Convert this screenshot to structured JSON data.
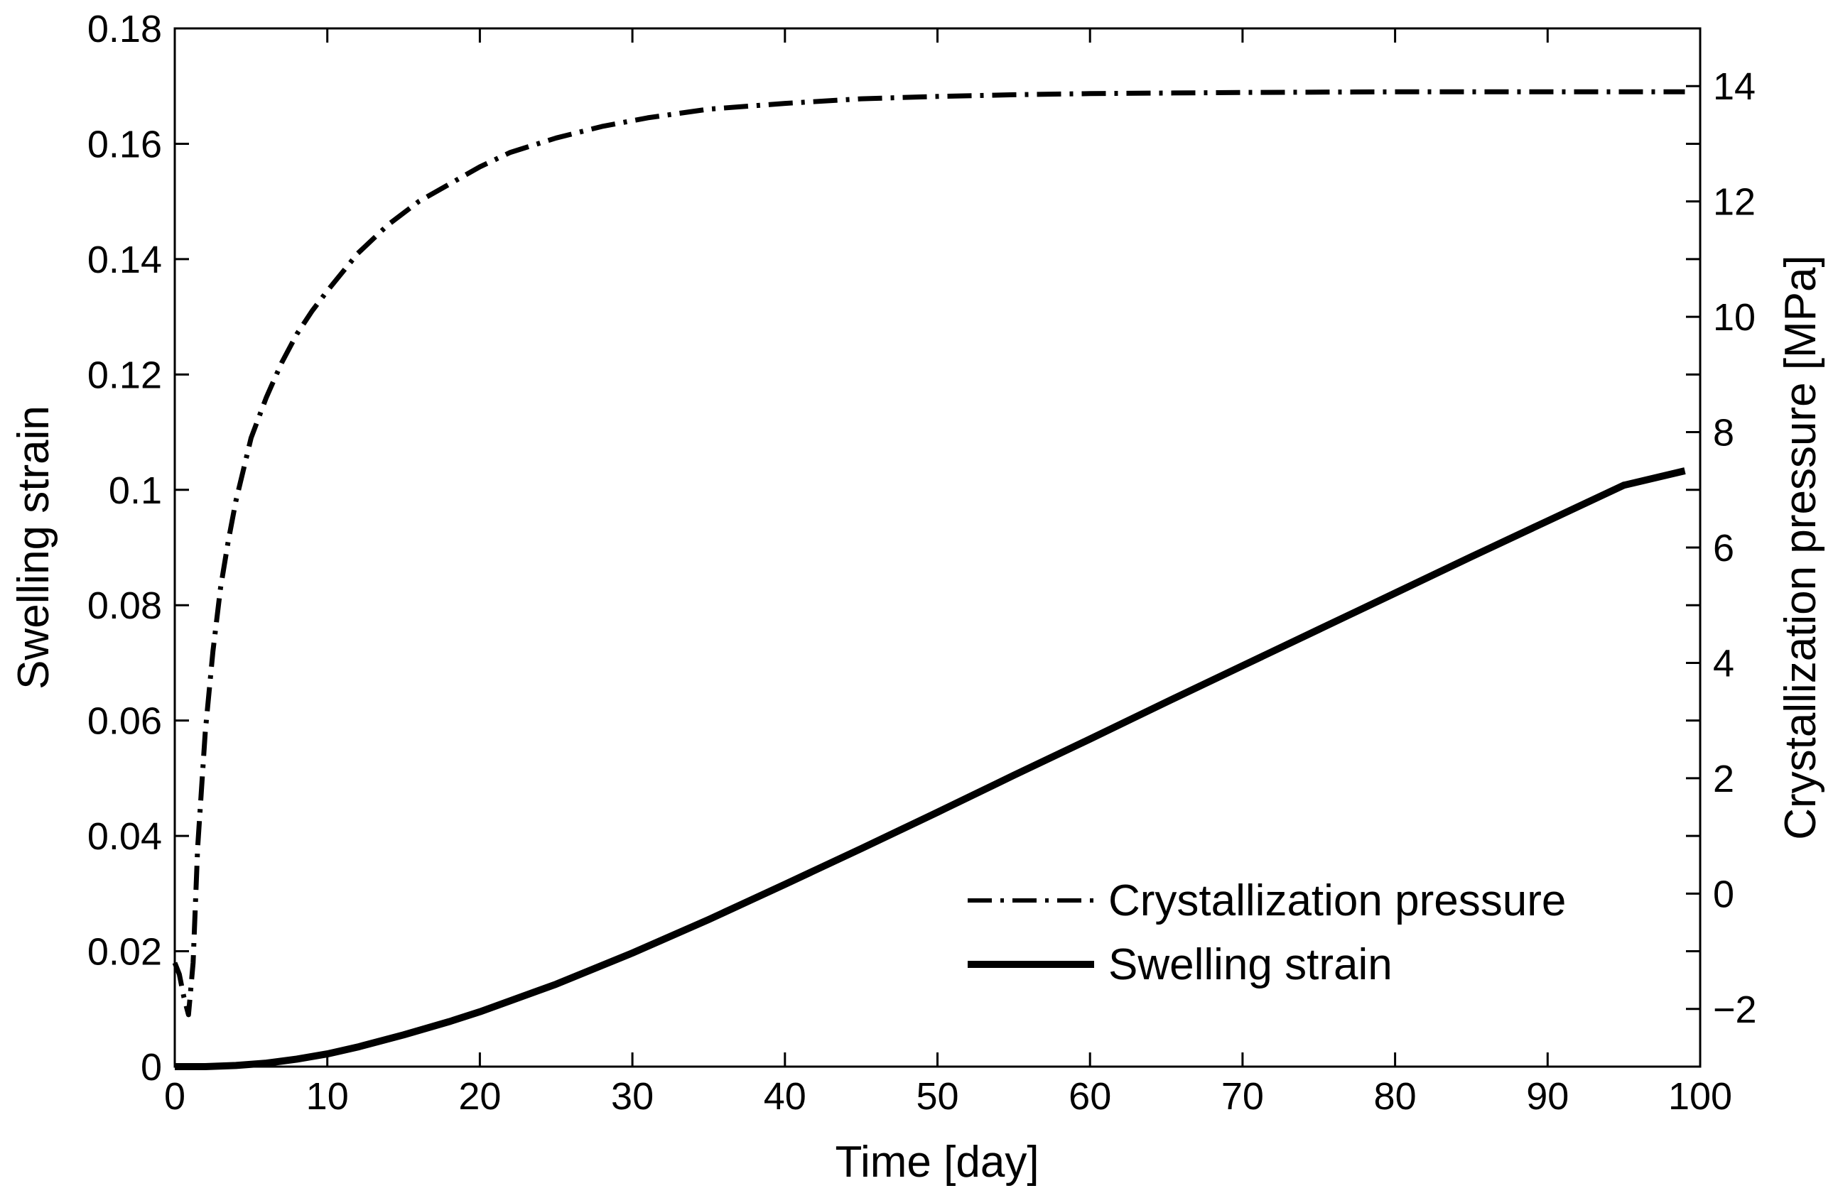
{
  "chart_data": {
    "type": "line",
    "title": "",
    "xlabel": "Time [day]",
    "ylabel": "Swelling strain",
    "y2label": "Crystallization pressure [MPa]",
    "xlim": [
      0,
      100
    ],
    "ylim": [
      0,
      0.18
    ],
    "y2lim": [
      -3,
      15
    ],
    "xticks": [
      "0",
      "10",
      "20",
      "30",
      "40",
      "50",
      "60",
      "70",
      "80",
      "90",
      "100"
    ],
    "yticks": [
      "0",
      "0.02",
      "0.04",
      "0.06",
      "0.08",
      "0.1",
      "0.12",
      "0.14",
      "0.16",
      "0.18"
    ],
    "y2ticks": [
      "−2",
      "0",
      "2",
      "4",
      "6",
      "8",
      "10",
      "12",
      "14"
    ],
    "grid": false,
    "legend_position": "bottom-right",
    "series": [
      {
        "name": "Crystallization pressure",
        "axis": "right",
        "style": "dash-dot",
        "color": "#000000",
        "x": [
          0,
          0.3,
          0.6,
          0.9,
          1.2,
          1.5,
          2,
          2.5,
          3,
          3.5,
          4,
          5,
          6,
          7,
          8,
          9,
          10,
          12,
          14,
          16,
          18,
          20,
          22,
          25,
          28,
          31,
          35,
          40,
          45,
          50,
          55,
          60,
          70,
          80,
          90,
          99
        ],
        "y": [
          -1.2,
          -1.4,
          -1.8,
          -2.1,
          -1.2,
          0.8,
          2.8,
          4.2,
          5.3,
          6.1,
          6.8,
          7.9,
          8.6,
          9.2,
          9.7,
          10.1,
          10.45,
          11.1,
          11.6,
          12.0,
          12.3,
          12.6,
          12.85,
          13.1,
          13.3,
          13.45,
          13.6,
          13.7,
          13.78,
          13.82,
          13.85,
          13.87,
          13.89,
          13.9,
          13.9,
          13.9
        ]
      },
      {
        "name": "Swelling strain",
        "axis": "left",
        "style": "solid",
        "color": "#000000",
        "x": [
          0,
          2,
          4,
          6,
          8,
          10,
          12,
          15,
          18,
          20,
          25,
          30,
          35,
          40,
          45,
          50,
          55,
          60,
          65,
          70,
          75,
          80,
          85,
          90,
          95,
          99
        ],
        "y": [
          0,
          0,
          0.0002,
          0.0006,
          0.0013,
          0.0022,
          0.0034,
          0.0055,
          0.0078,
          0.0095,
          0.0143,
          0.0197,
          0.0255,
          0.0316,
          0.0378,
          0.0441,
          0.0505,
          0.0568,
          0.0632,
          0.0695,
          0.0758,
          0.0821,
          0.0884,
          0.0946,
          0.1008,
          0.1033
        ]
      }
    ]
  }
}
